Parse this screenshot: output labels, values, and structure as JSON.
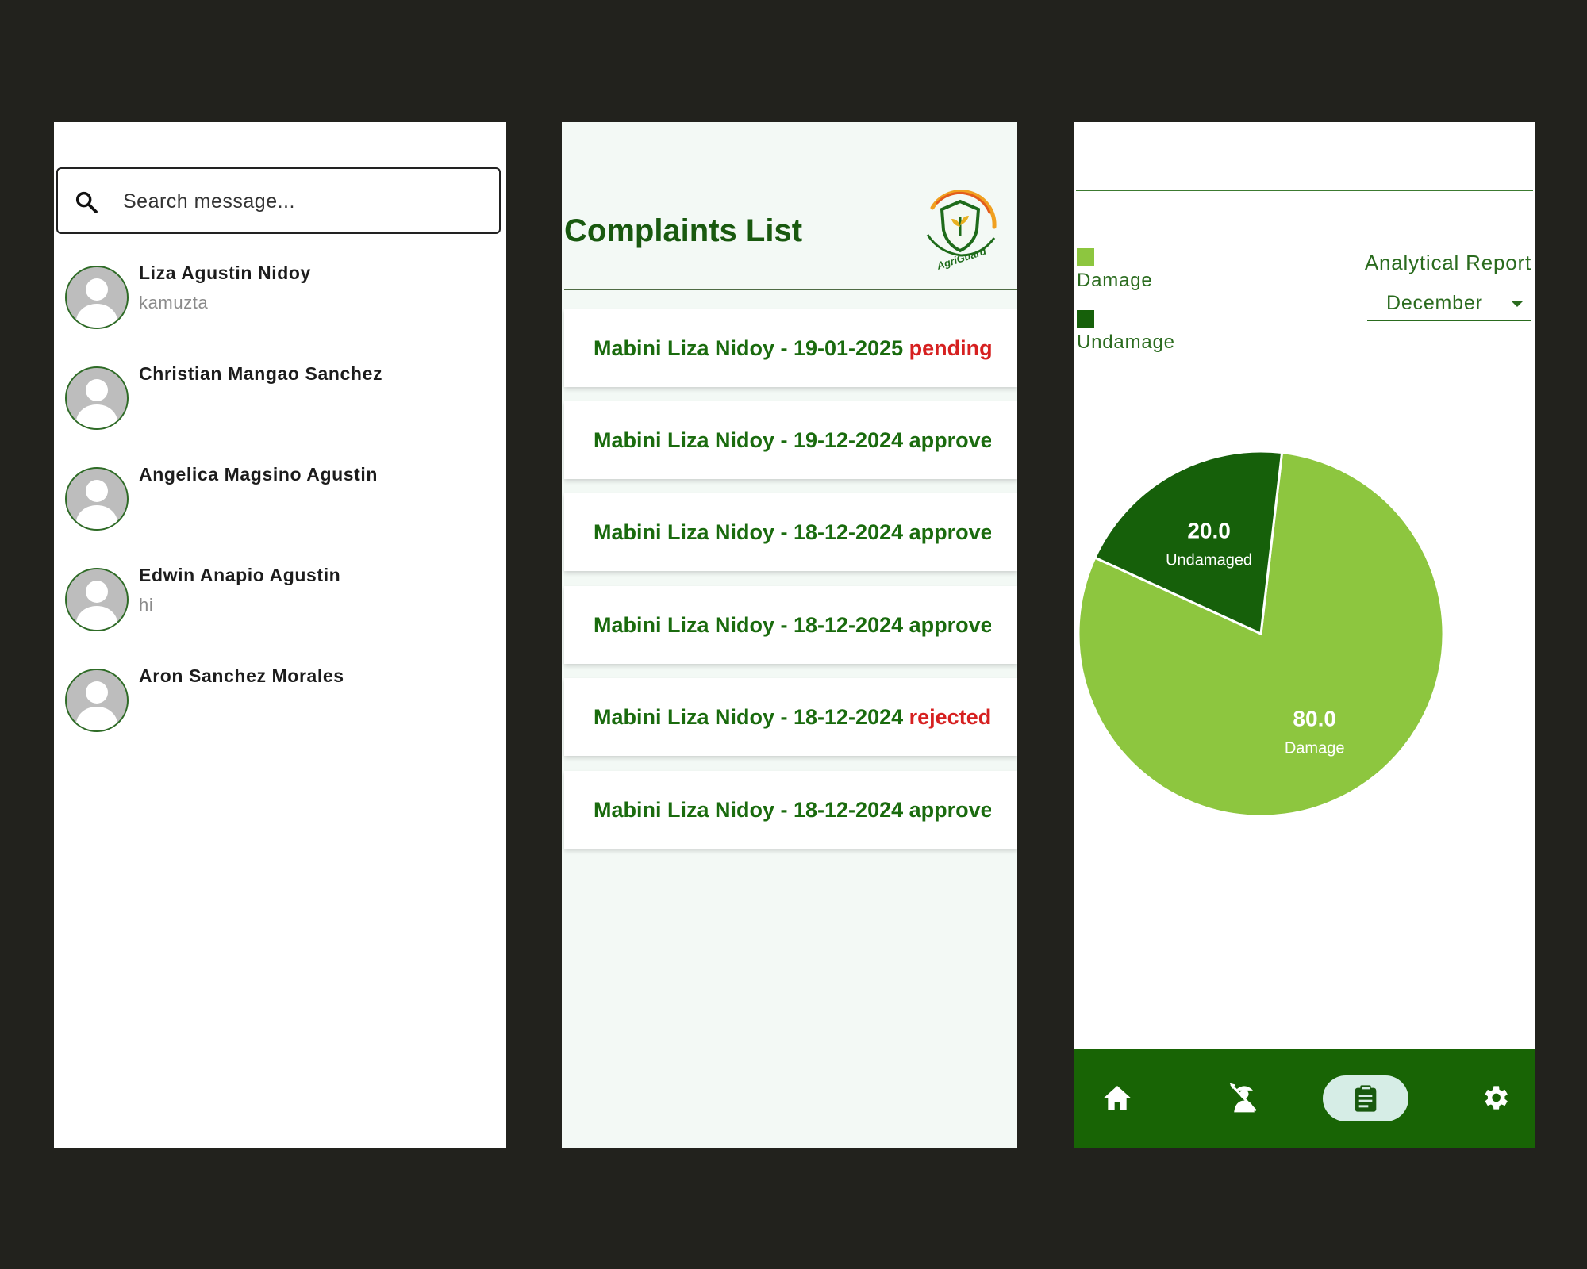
{
  "messages": {
    "search_placeholder": "Search message...",
    "contacts": [
      {
        "name": "Liza Agustin Nidoy",
        "message": "kamuzta"
      },
      {
        "name": "Christian Mangao Sanchez",
        "message": ""
      },
      {
        "name": "Angelica Magsino Agustin",
        "message": ""
      },
      {
        "name": "Edwin Anapio Agustin",
        "message": "hi"
      },
      {
        "name": "Aron Sanchez Morales",
        "message": ""
      }
    ]
  },
  "complaints": {
    "title": "Complaints List",
    "logo_text": "AgriGuard",
    "items": [
      {
        "label": "Mabini Liza Nidoy - 19-01-2025",
        "status": "pending"
      },
      {
        "label": "Mabini Liza Nidoy - 19-12-2024",
        "status": "approved"
      },
      {
        "label": "Mabini Liza Nidoy - 18-12-2024",
        "status": "approved"
      },
      {
        "label": "Mabini Liza Nidoy - 18-12-2024",
        "status": "approved"
      },
      {
        "label": "Mabini Liza Nidoy - 18-12-2024",
        "status": "rejected"
      },
      {
        "label": "Mabini Liza Nidoy - 18-12-2024",
        "status": "approved"
      }
    ],
    "colors": {
      "text": "#1a6b0e",
      "alert": "#d62020"
    }
  },
  "report": {
    "title": "Analytical Report",
    "month": "December",
    "legend": [
      {
        "label": "Damage",
        "color": "#8dc63f"
      },
      {
        "label": "Undamage",
        "color": "#16600a"
      }
    ],
    "nav": [
      "home-icon",
      "farmer-icon",
      "clipboard-icon",
      "gear-icon"
    ]
  },
  "chart_data": {
    "type": "pie",
    "slices": [
      {
        "label": "Damage",
        "value": 80.0,
        "display": "80.0",
        "color": "#8dc63f"
      },
      {
        "label": "Undamaged",
        "value": 20.0,
        "display": "20.0",
        "color": "#16600a"
      }
    ]
  }
}
